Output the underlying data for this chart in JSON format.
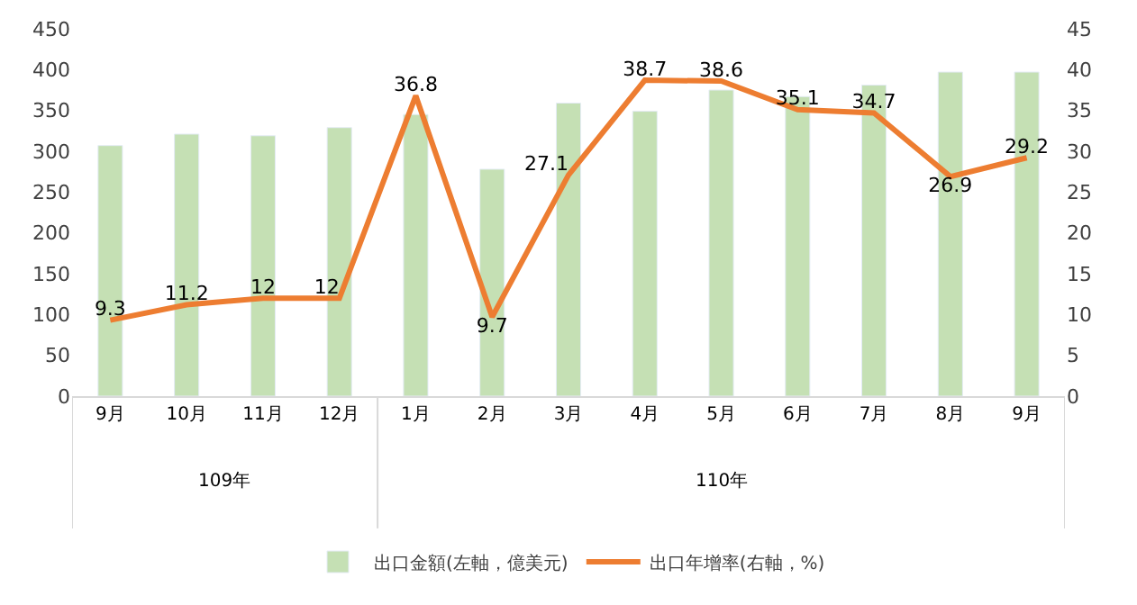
{
  "chart_data": {
    "type": "bar",
    "categories": [
      "9月",
      "10月",
      "11月",
      "12月",
      "1月",
      "2月",
      "3月",
      "4月",
      "5月",
      "6月",
      "7月",
      "8月",
      "9月"
    ],
    "series": [
      {
        "name": "出口金額(左軸，億美元)",
        "color": "#c5e0b4",
        "values": [
          307,
          321,
          319,
          329,
          345,
          278,
          359,
          349,
          375,
          367,
          381,
          397,
          397
        ]
      },
      {
        "name": "出口年增率(右軸，%)",
        "type": "line",
        "axis": "y2",
        "color": "#ed7d31",
        "values": [
          9.3,
          11.2,
          12,
          12,
          36.8,
          9.7,
          27.1,
          38.7,
          38.6,
          35.1,
          34.7,
          26.9,
          29.2
        ],
        "value_labels": [
          "9.3",
          "11.2",
          "12",
          "12",
          "36.8",
          "9.7",
          "27.1",
          "38.7",
          "38.6",
          "35.1",
          "34.7",
          "26.9",
          "29.2"
        ]
      }
    ],
    "ylim": [
      0,
      450
    ],
    "yticks": [
      0,
      50,
      100,
      150,
      200,
      250,
      300,
      350,
      400,
      450
    ],
    "y2lim": [
      0,
      45
    ],
    "y2ticks": [
      0,
      5,
      10,
      15,
      20,
      25,
      30,
      35,
      40,
      45
    ],
    "annotations": [
      "109年",
      "110年"
    ],
    "legend": "bottom"
  }
}
